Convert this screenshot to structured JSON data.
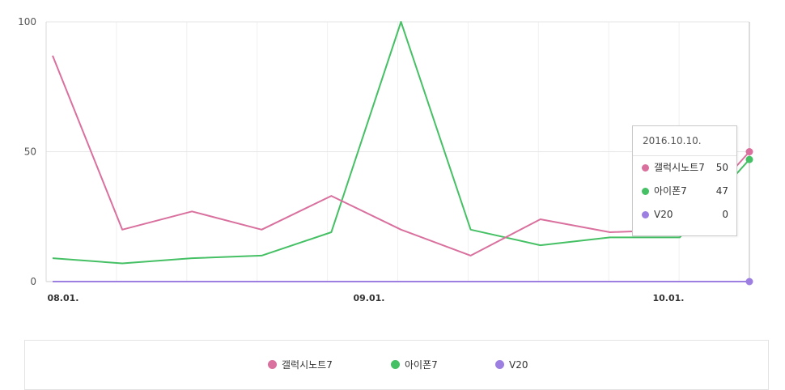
{
  "chart_data": {
    "type": "line",
    "ylim": [
      0,
      100
    ],
    "y_ticks": [
      "100",
      "50",
      "0"
    ],
    "x_ticks": [
      "08.01.",
      "09.01.",
      "10.01."
    ],
    "grid": true,
    "legend_placement": "bottom-center",
    "series": [
      {
        "name": "갤럭시노트7",
        "color": "#d9709e",
        "values": [
          87,
          20,
          27,
          20,
          33,
          20,
          10,
          24,
          19,
          20,
          50
        ]
      },
      {
        "name": "아이폰7",
        "color": "#45c064",
        "values": [
          9,
          7,
          9,
          10,
          19,
          100,
          20,
          14,
          17,
          17,
          47
        ]
      },
      {
        "name": "V20",
        "color": "#9c7fe0",
        "values": [
          0,
          0,
          0,
          0,
          0,
          0,
          0,
          0,
          0,
          0,
          0
        ]
      }
    ]
  },
  "tooltip": {
    "title": "2016.10.10.",
    "rows": [
      {
        "label": "갤럭시노트7",
        "value": "50",
        "color": "#d9709e"
      },
      {
        "label": "아이폰7",
        "value": "47",
        "color": "#45c064"
      },
      {
        "label": "V20",
        "value": "0",
        "color": "#9c7fe0"
      }
    ]
  }
}
